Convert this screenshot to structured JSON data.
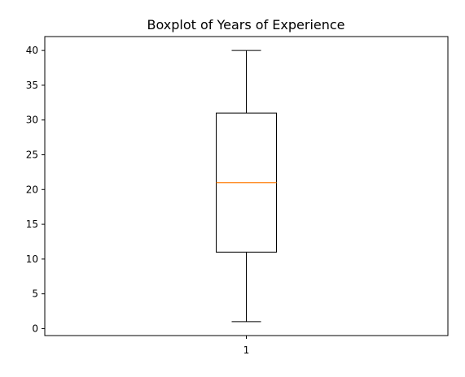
{
  "chart_data": {
    "type": "boxplot",
    "title": "Boxplot of Years of Experience",
    "xlabel": "",
    "ylabel": "",
    "categories": [
      "1"
    ],
    "boxes": [
      {
        "category": "1",
        "whisker_low": 1,
        "q1": 11,
        "median": 21,
        "q3": 31,
        "whisker_high": 40
      }
    ],
    "yticks": [
      0,
      5,
      10,
      15,
      20,
      25,
      30,
      35,
      40
    ],
    "ytick_labels": [
      "0",
      "5",
      "10",
      "15",
      "20",
      "25",
      "30",
      "35",
      "40"
    ],
    "ylim": [
      -1,
      42
    ],
    "grid": false,
    "colors": {
      "box": "#000000",
      "whisker": "#000000",
      "median": "#ff7f0e",
      "axes": "#000000"
    }
  }
}
